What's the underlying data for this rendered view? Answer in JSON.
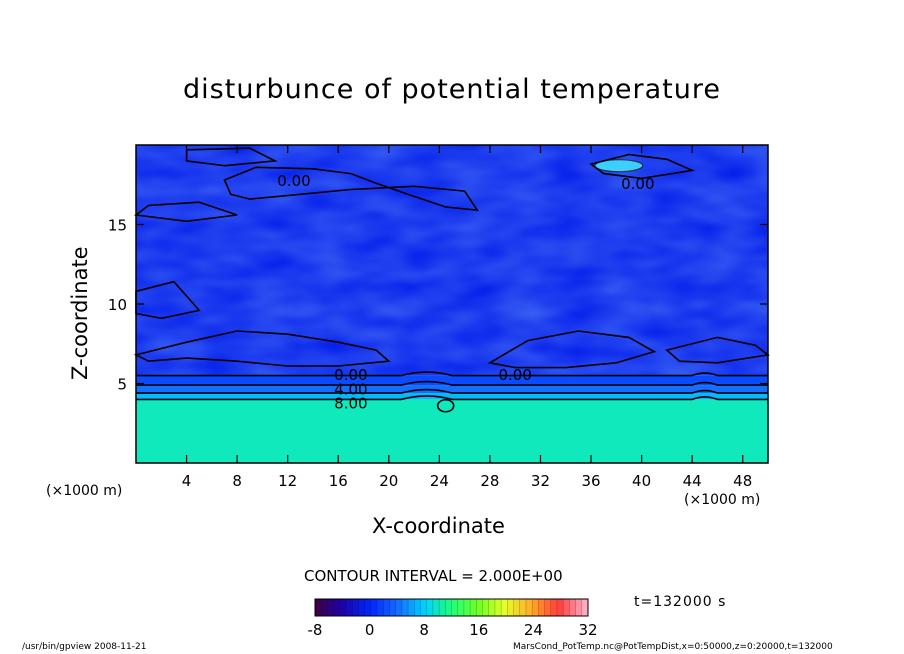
{
  "chart_data": {
    "type": "heatmap",
    "title": "disturbunce of potential temperature",
    "xlabel": "X-coordinate",
    "ylabel": "Z-coordinate",
    "x_unit": "(×1000 m)",
    "xlim": [
      0,
      50
    ],
    "ylim": [
      0,
      20
    ],
    "x_ticks": [
      4,
      8,
      12,
      16,
      20,
      24,
      28,
      32,
      36,
      40,
      44,
      48
    ],
    "y_ticks": [
      5,
      10,
      15
    ],
    "contour_interval_label": "CONTOUR INTERVAL = 2.000E+00",
    "contour_labels": [
      {
        "text": "0.00",
        "x": 12.5,
        "z": 17.8
      },
      {
        "text": "0.00",
        "x": 39.7,
        "z": 17.6
      },
      {
        "text": "0.00",
        "x": 17.0,
        "z": 5.6
      },
      {
        "text": "0.00",
        "x": 30.0,
        "z": 5.6
      },
      {
        "text": "4.00",
        "x": 17.0,
        "z": 4.7
      },
      {
        "text": "8.00",
        "x": 17.0,
        "z": 3.8
      }
    ],
    "colorbar": {
      "min": -8,
      "max": 32,
      "ticks": [
        -8,
        0,
        8,
        16,
        24,
        32
      ]
    },
    "field_bands": [
      {
        "z0": 0,
        "z1": 4.0,
        "value": 10
      },
      {
        "z0": 4.0,
        "z1": 4.4,
        "value": 7
      },
      {
        "z0": 4.4,
        "z1": 4.9,
        "value": 4
      },
      {
        "z0": 4.9,
        "z1": 5.5,
        "value": 2
      },
      {
        "z0": 5.5,
        "z1": 20,
        "value": -1
      }
    ],
    "time_label": "t=132000 s"
  },
  "footer": {
    "left": "/usr/bin/gpview   2008-11-21",
    "right": "MarsCond_PotTemp.nc@PotTempDist,x=0:50000,z=0:20000,t=132000"
  }
}
